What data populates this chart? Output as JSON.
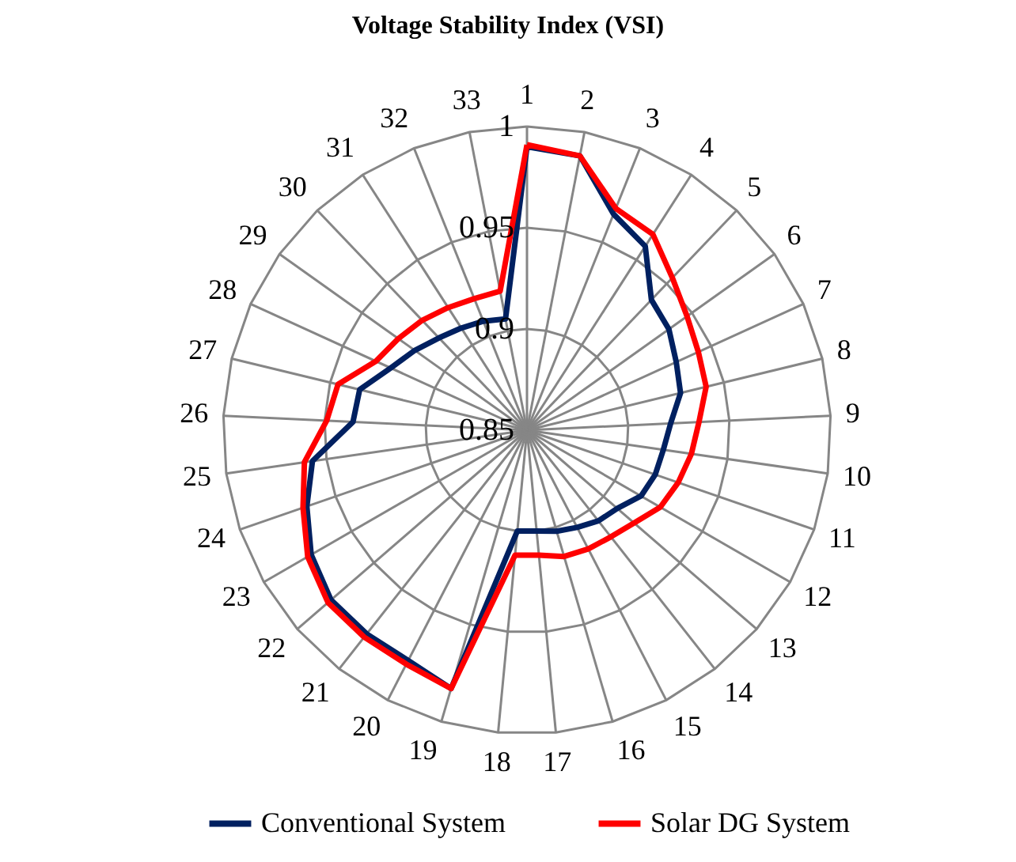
{
  "chart_data": {
    "type": "radar",
    "title": "Voltage Stability Index (VSI)",
    "categories": [
      "1",
      "2",
      "3",
      "4",
      "5",
      "6",
      "7",
      "8",
      "9",
      "10",
      "11",
      "12",
      "13",
      "14",
      "15",
      "16",
      "17",
      "18",
      "19",
      "20",
      "21",
      "22",
      "23",
      "24",
      "25",
      "26",
      "27",
      "28",
      "29",
      "30",
      "31",
      "32",
      "33"
    ],
    "series": [
      {
        "name": "Conventional System",
        "color": "#002060",
        "values": [
          0.99,
          0.988,
          0.965,
          0.958,
          0.939,
          0.936,
          0.931,
          0.928,
          0.921,
          0.918,
          0.917,
          0.915,
          0.909,
          0.907,
          0.904,
          0.902,
          0.9,
          0.9,
          0.983,
          0.978,
          0.978,
          0.978,
          0.973,
          0.965,
          0.957,
          0.936,
          0.935,
          0.924,
          0.918,
          0.913,
          0.91,
          0.908,
          0.906
        ]
      },
      {
        "name": "Solar DG System",
        "color": "#ff0000",
        "values": [
          0.991,
          0.988,
          0.968,
          0.965,
          0.954,
          0.947,
          0.943,
          0.941,
          0.935,
          0.932,
          0.929,
          0.926,
          0.92,
          0.917,
          0.916,
          0.915,
          0.912,
          0.912,
          0.983,
          0.98,
          0.98,
          0.98,
          0.975,
          0.967,
          0.961,
          0.949,
          0.946,
          0.932,
          0.928,
          0.925,
          0.922,
          0.92,
          0.92
        ]
      }
    ],
    "ylim": [
      0.85,
      1
    ],
    "yticks": [
      0.85,
      0.9,
      0.95,
      1
    ],
    "grid": true,
    "legend": "bottom"
  }
}
